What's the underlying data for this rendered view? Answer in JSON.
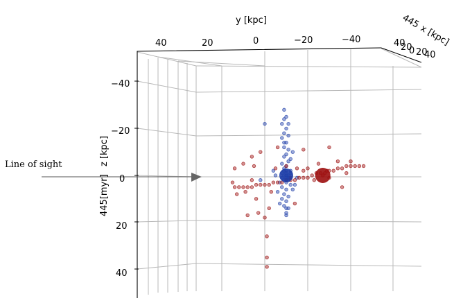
{
  "chart_data": {
    "type": "scatter",
    "projection": "3d",
    "annotation": "Line of sight",
    "ylabel": "y [kpc]",
    "xlabel": "x [kpc]",
    "zlabel": "z [kpc]",
    "z_axis_prefix": "445[myr]",
    "x_axis_prefix": "445",
    "y_ticks": [
      "40",
      "20",
      "0",
      "−20",
      "−40"
    ],
    "x_ticks": [
      "40",
      "20",
      "0",
      "20",
      "40"
    ],
    "z_ticks": [
      "−40",
      "−20",
      "0",
      "20",
      "40"
    ],
    "colors": {
      "blue": "#1f3fa8",
      "red": "#9c0e0e",
      "grid": "#b8b8b8",
      "arrow": "#666666"
    },
    "series": [
      {
        "color": "blue",
        "points": [
          {
            "y": -9,
            "z": -28
          },
          {
            "y": -10,
            "z": -25
          },
          {
            "y": -8,
            "z": -22
          },
          {
            "y": -10,
            "z": -20
          },
          {
            "y": -9,
            "z": -18
          },
          {
            "y": -11,
            "z": -17
          },
          {
            "y": -8,
            "z": -16
          },
          {
            "y": -10,
            "z": -14
          },
          {
            "y": -9,
            "z": -12
          },
          {
            "y": -11,
            "z": -11
          },
          {
            "y": -10,
            "z": -9
          },
          {
            "y": -9,
            "z": -8
          },
          {
            "y": -11,
            "z": -6
          },
          {
            "y": -10,
            "z": -4
          },
          {
            "y": -9,
            "z": -3
          },
          {
            "y": -12,
            "z": -2
          },
          {
            "y": -8,
            "z": -1
          },
          {
            "y": -10,
            "z": 0
          },
          {
            "y": -11,
            "z": 1
          },
          {
            "y": -9,
            "z": 2
          },
          {
            "y": -10,
            "z": 3
          },
          {
            "y": -12,
            "z": 4
          },
          {
            "y": -8,
            "z": 5
          },
          {
            "y": -10,
            "z": 6
          },
          {
            "y": -9,
            "z": 8
          },
          {
            "y": -11,
            "z": 9
          },
          {
            "y": -10,
            "z": 11
          },
          {
            "y": -9,
            "z": 13
          },
          {
            "y": -11,
            "z": 14
          },
          {
            "y": -10,
            "z": 16
          },
          {
            "y": -12,
            "z": 1
          },
          {
            "y": -8,
            "z": -5
          },
          {
            "y": -7,
            "z": 3
          },
          {
            "y": -13,
            "z": 6
          },
          {
            "y": -9,
            "z": -14
          },
          {
            "y": -10,
            "z": 17
          },
          {
            "y": -15,
            "z": 1
          },
          {
            "y": -5,
            "z": 0
          },
          {
            "y": -4,
            "z": -2
          },
          {
            "y": -14,
            "z": 4
          },
          {
            "y": -6,
            "z": 7
          },
          {
            "y": -11,
            "z": -22
          },
          {
            "y": -9,
            "z": -24
          },
          {
            "y": -13,
            "z": -10
          },
          {
            "y": -7,
            "z": 12
          },
          {
            "y": 0,
            "z": -22
          },
          {
            "y": 2,
            "z": 2
          },
          {
            "y": -8,
            "z": 10
          },
          {
            "y": -12,
            "z": -7
          },
          {
            "y": -10,
            "z": 14
          },
          {
            "y": -11,
            "z": 2
          },
          {
            "y": -9,
            "z": -2
          },
          {
            "y": -12,
            "z": -1
          },
          {
            "y": -8,
            "z": 1
          },
          {
            "y": -10,
            "z": -1
          },
          {
            "y": -10,
            "z": 1
          },
          {
            "y": -11,
            "z": 0
          },
          {
            "y": -9,
            "z": 0
          },
          {
            "y": -10,
            "z": 2
          },
          {
            "y": -10,
            "z": -2
          }
        ]
      },
      {
        "color": "red",
        "points": [
          {
            "y": -27,
            "z": 0
          },
          {
            "y": -22,
            "z": 0
          },
          {
            "y": -20,
            "z": 1
          },
          {
            "y": -18,
            "z": 1
          },
          {
            "y": -16,
            "z": 1
          },
          {
            "y": -14,
            "z": 2
          },
          {
            "y": -12,
            "z": 2
          },
          {
            "y": -10,
            "z": 2
          },
          {
            "y": -8,
            "z": 3
          },
          {
            "y": -6,
            "z": 3
          },
          {
            "y": -4,
            "z": 3
          },
          {
            "y": -2,
            "z": 4
          },
          {
            "y": 0,
            "z": 4
          },
          {
            "y": 2,
            "z": 4
          },
          {
            "y": 4,
            "z": 4
          },
          {
            "y": 6,
            "z": 5
          },
          {
            "y": 8,
            "z": 5
          },
          {
            "y": 10,
            "z": 5
          },
          {
            "y": 12,
            "z": 5
          },
          {
            "y": 14,
            "z": 5
          },
          {
            "y": -24,
            "z": -1
          },
          {
            "y": -26,
            "z": -1
          },
          {
            "y": -28,
            "z": -1
          },
          {
            "y": -30,
            "z": -2
          },
          {
            "y": -32,
            "z": -2
          },
          {
            "y": -34,
            "z": -3
          },
          {
            "y": -36,
            "z": -3
          },
          {
            "y": -38,
            "z": -4
          },
          {
            "y": -40,
            "z": -4
          },
          {
            "y": -42,
            "z": -4
          },
          {
            "y": -44,
            "z": -4
          },
          {
            "y": -46,
            "z": -4
          },
          {
            "y": -18,
            "z": -2
          },
          {
            "y": -15,
            "z": -3
          },
          {
            "y": -12,
            "z": 1
          },
          {
            "y": -20,
            "z": -3
          },
          {
            "y": -30,
            "z": 1
          },
          {
            "y": -34,
            "z": -6
          },
          {
            "y": -38,
            "z": -1
          },
          {
            "y": -40,
            "z": -6
          },
          {
            "y": -25,
            "z": -5
          },
          {
            "y": -10,
            "z": -4
          },
          {
            "y": -5,
            "z": -3
          },
          {
            "y": 6,
            "z": 2
          },
          {
            "y": 9,
            "z": 7
          },
          {
            "y": 15,
            "z": 3
          },
          {
            "y": 13,
            "z": 8
          },
          {
            "y": 4,
            "z": 10
          },
          {
            "y": -2,
            "z": 14
          },
          {
            "y": 0,
            "z": 18
          },
          {
            "y": -1,
            "z": 26
          },
          {
            "y": -1,
            "z": 35
          },
          {
            "y": -1,
            "z": 39
          },
          {
            "y": 6,
            "z": -8
          },
          {
            "y": 2,
            "z": -10
          },
          {
            "y": 10,
            "z": -5
          },
          {
            "y": 14,
            "z": -3
          },
          {
            "y": 5,
            "z": -4
          },
          {
            "y": -30,
            "z": -12
          },
          {
            "y": -18,
            "z": -11
          },
          {
            "y": -6,
            "z": -12
          },
          {
            "y": -14,
            "z": 12
          },
          {
            "y": -3,
            "z": 7
          },
          {
            "y": -36,
            "z": 5
          },
          {
            "y": 8,
            "z": 17
          },
          {
            "y": 3,
            "z": 16
          },
          {
            "y": -29,
            "z": -2
          },
          {
            "y": -23,
            "z": 2
          }
        ]
      }
    ],
    "big_points": [
      {
        "color": "blue",
        "y": -10,
        "z": 0
      },
      {
        "color": "red",
        "y": -27,
        "z": 0
      }
    ]
  }
}
